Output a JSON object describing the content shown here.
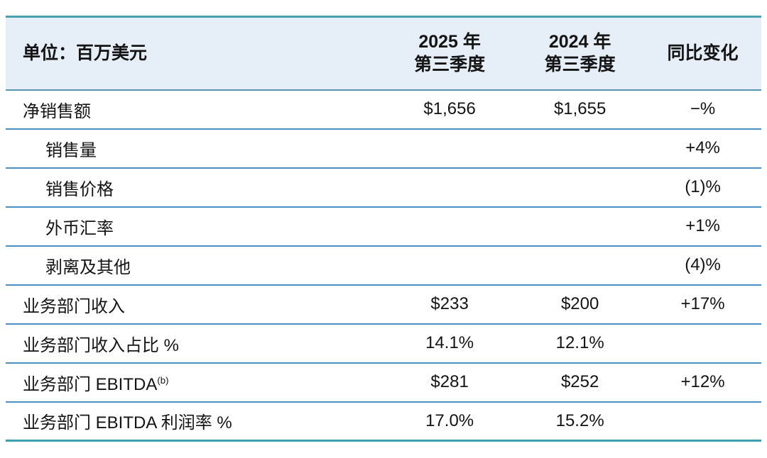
{
  "colors": {
    "header_background": "#e6eef7",
    "outer_border_teal": "#4aa0ae",
    "bottom_border_teal": "#3f9faa",
    "row_divider_blue": "#4b8fc2",
    "text": "#141414"
  },
  "table": {
    "unit_label": "单位：百万美元",
    "columns": {
      "q3_2025": "2025 年\n第三季度",
      "q3_2024": "2024 年\n第三季度",
      "yoy": "同比变化"
    },
    "rows": [
      {
        "label": "净销售额",
        "q3_2025": "$1,656",
        "q3_2024": "$1,655",
        "yoy": "−%"
      },
      {
        "label": "销售量",
        "q3_2025": "",
        "q3_2024": "",
        "yoy": "+4%"
      },
      {
        "label": "销售价格",
        "q3_2025": "",
        "q3_2024": "",
        "yoy": "(1)%"
      },
      {
        "label": "外币汇率",
        "q3_2025": "",
        "q3_2024": "",
        "yoy": "+1%"
      },
      {
        "label": "剥离及其他",
        "q3_2025": "",
        "q3_2024": "",
        "yoy": "(4)%"
      },
      {
        "label": "业务部门收入",
        "q3_2025": "$233",
        "q3_2024": "$200",
        "yoy": "+17%"
      },
      {
        "label": "业务部门收入占比 %",
        "q3_2025": "14.1%",
        "q3_2024": "12.1%",
        "yoy": ""
      },
      {
        "label": "业务部门 EBITDA",
        "label_superscript": "(b)",
        "q3_2025": "$281",
        "q3_2024": "$252",
        "yoy": "+12%"
      },
      {
        "label": "业务部门 EBITDA 利润率 %",
        "q3_2025": "17.0%",
        "q3_2024": "15.2%",
        "yoy": ""
      }
    ]
  }
}
